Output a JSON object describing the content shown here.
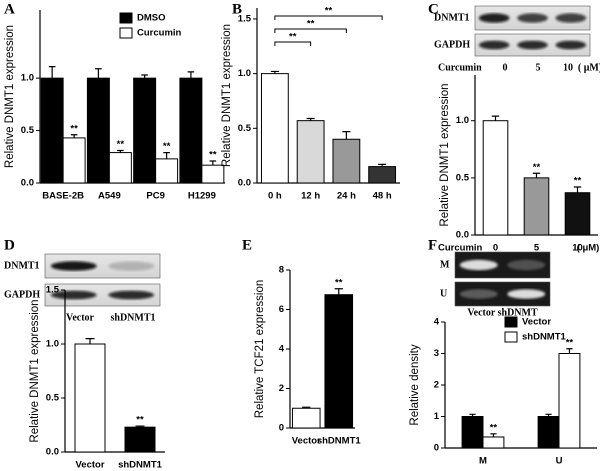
{
  "chart_data": [
    {
      "type": "bar",
      "panel": "A",
      "y_label": "Relative DNMT1 expression",
      "categories": [
        "BASE-2B",
        "A549",
        "PC9",
        "H1299"
      ],
      "series": [
        {
          "name": "DMSO",
          "color": "#000000",
          "values": [
            1.0,
            1.0,
            1.0,
            1.0
          ],
          "errors": [
            0.11,
            0.09,
            0.03,
            0.06
          ]
        },
        {
          "name": "Curcumin",
          "color": "#ffffff",
          "values": [
            0.43,
            0.29,
            0.23,
            0.17
          ],
          "errors": [
            0.03,
            0.02,
            0.06,
            0.04
          ],
          "significance": [
            "**",
            "**",
            "**",
            "**"
          ]
        }
      ],
      "ylim": [
        0,
        1.65
      ],
      "yticks": [
        {
          "value": 0,
          "label": "0.0"
        },
        {
          "value": 0.5,
          "label": "0.5"
        },
        {
          "value": 1.0,
          "label": "1.0"
        }
      ],
      "legend": "upper right"
    },
    {
      "type": "bar",
      "panel": "B",
      "y_label": "Relative DNMT1 expression",
      "categories": [
        "0 h",
        "12 h",
        "24 h",
        "48 h"
      ],
      "series": [
        {
          "colors": [
            "#ffffff",
            "#d9d9d9",
            "#999999",
            "#333333"
          ],
          "values": [
            1.0,
            0.57,
            0.4,
            0.15
          ],
          "errors": [
            0.02,
            0.02,
            0.07,
            0.02
          ],
          "bracket_labels": [
            null,
            "**",
            "**",
            "**"
          ]
        }
      ],
      "ylim": [
        0,
        1.6
      ],
      "yticks": [
        {
          "value": 0,
          "label": "0.0"
        },
        {
          "value": 0.5,
          "label": "0.5"
        },
        {
          "value": 1.0,
          "label": "1.0"
        },
        {
          "value": 1.5,
          "label": "1.5"
        }
      ]
    },
    {
      "type": "bar",
      "panel": "C",
      "y_label": "Relative DNMT1 expression",
      "blot": {
        "rows": [
          "DNMT1",
          "GAPDH"
        ],
        "lanes_title": "Curcumin",
        "lanes": [
          "0",
          "5",
          "10"
        ],
        "lanes_unit": "( μM)"
      },
      "x_title": "Curcumin",
      "x_unit": "( μM)",
      "categories": [
        "0",
        "5",
        "10"
      ],
      "series": [
        {
          "colors": [
            "#ffffff",
            "#999999",
            "#111111"
          ],
          "values": [
            1.0,
            0.5,
            0.37
          ],
          "errors": [
            0.04,
            0.04,
            0.05
          ],
          "significance": [
            null,
            "**",
            "**"
          ]
        }
      ],
      "ylim": [
        0,
        1.4
      ],
      "yticks": [
        {
          "value": 0,
          "label": "0.0"
        },
        {
          "value": 0.5,
          "label": "0.5"
        },
        {
          "value": 1.0,
          "label": "1.0"
        }
      ]
    },
    {
      "type": "bar",
      "panel": "D",
      "y_label": "Relative DNMT1 expression",
      "blot": {
        "rows": [
          "DNMT1",
          "GAPDH"
        ],
        "lanes": [
          "Vector",
          "shDNMT1"
        ]
      },
      "categories": [
        "Vector",
        "shDNMT1"
      ],
      "series": [
        {
          "colors": [
            "#ffffff",
            "#000000"
          ],
          "values": [
            1.0,
            0.23
          ],
          "errors": [
            0.05,
            0.01
          ],
          "significance": [
            null,
            "**"
          ]
        }
      ],
      "ylim": [
        0,
        1.5
      ],
      "yticks": [
        {
          "value": 0,
          "label": "0.0"
        },
        {
          "value": 0.5,
          "label": "0.5"
        },
        {
          "value": 1.0,
          "label": "1.0"
        },
        {
          "value": 1.5,
          "label": "1.5"
        }
      ]
    },
    {
      "type": "bar",
      "panel": "E",
      "y_label": "Relative TCF21 expression",
      "categories": [
        "Vector",
        "shDNMT1"
      ],
      "series": [
        {
          "colors": [
            "#ffffff",
            "#000000"
          ],
          "values": [
            1.0,
            6.75
          ],
          "errors": [
            0.05,
            0.3
          ],
          "significance": [
            null,
            "**"
          ]
        }
      ],
      "ylim": [
        0,
        8
      ],
      "yticks": [
        0,
        2,
        4,
        6,
        8
      ]
    },
    {
      "type": "bar",
      "panel": "F",
      "y_label": "Relative density",
      "blot": {
        "rows": [
          "M",
          "U"
        ],
        "caption": "Vector shDNMT"
      },
      "categories": [
        "M",
        "U"
      ],
      "series": [
        {
          "name": "Vector",
          "color": "#000000",
          "values": [
            1.0,
            1.0
          ],
          "errors": [
            0.07,
            0.07
          ]
        },
        {
          "name": "shDNMT1",
          "color": "#ffffff",
          "values": [
            0.35,
            3.0
          ],
          "errors": [
            0.1,
            0.15
          ],
          "significance": [
            "**",
            "**"
          ]
        }
      ],
      "ylim": [
        0,
        4
      ],
      "yticks": [
        0,
        1,
        2,
        3,
        4
      ],
      "legend": "upper right"
    }
  ]
}
